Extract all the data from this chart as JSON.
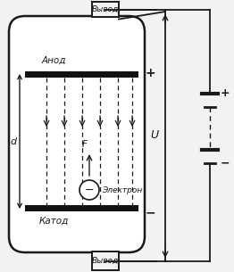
{
  "bg_color": "#f2f2f2",
  "anode_label": "Анод",
  "cathode_label": "Катод",
  "plus_anode": "+",
  "minus_cathode": "−",
  "d_label": "d",
  "F_label": "F",
  "electron_minus": "−",
  "electron_label": "Электрон",
  "vyvod_top": "Вывод",
  "vyvod_bot": "Вывод",
  "U_label": "U",
  "plus_bat": "+",
  "minus_bat": "−",
  "line_color": "#1a1a1a"
}
